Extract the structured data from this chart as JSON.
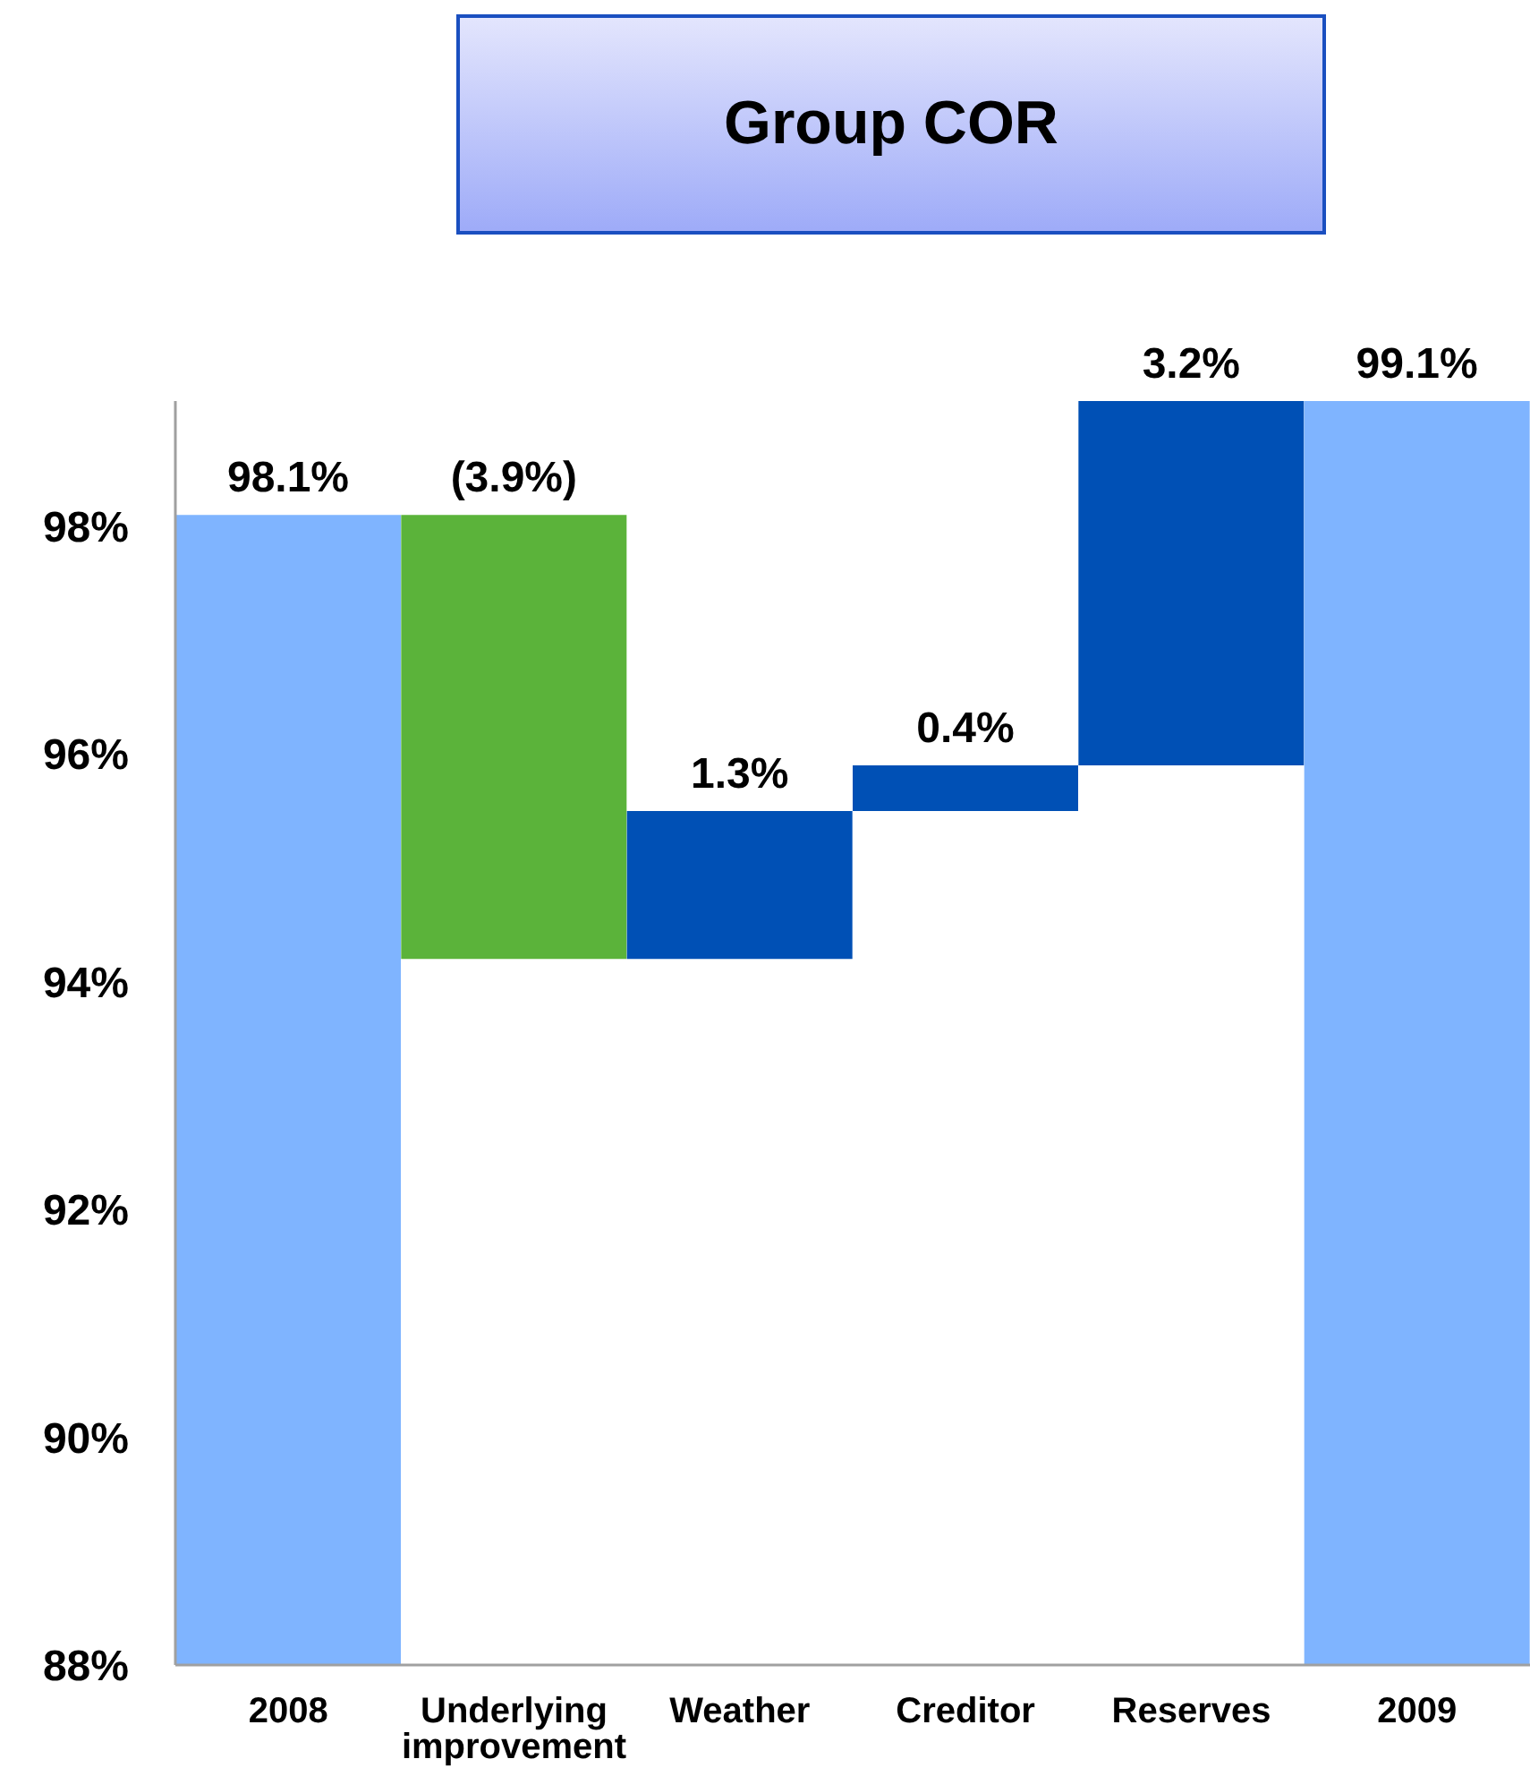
{
  "chart_data": {
    "type": "bar",
    "title": "Group COR",
    "categories": [
      "2008",
      "Underlying improvement",
      "Weather",
      "Creditor",
      "Reserves",
      "2009"
    ],
    "values": [
      98.1,
      -3.9,
      1.3,
      0.4,
      3.2,
      99.1
    ],
    "base": [
      null,
      98.1,
      94.2,
      95.5,
      95.9,
      null
    ],
    "colors": [
      "#7fb4ff",
      "#5bb33a",
      "#0050b5",
      "#0050b5",
      "#0050b5",
      "#7fb4ff"
    ],
    "value_labels": [
      "98.1%",
      "(3.9%)",
      "1.3%",
      "0.4%",
      "3.2%",
      "99.1%"
    ],
    "ylim": [
      88,
      99.1
    ],
    "yticks": [
      {
        "value": 88,
        "label": "88%"
      },
      {
        "value": 90,
        "label": "90%"
      },
      {
        "value": 92,
        "label": "92%"
      },
      {
        "value": 94,
        "label": "94%"
      },
      {
        "value": 96,
        "label": "96%"
      },
      {
        "value": 98,
        "label": "98%"
      }
    ]
  }
}
